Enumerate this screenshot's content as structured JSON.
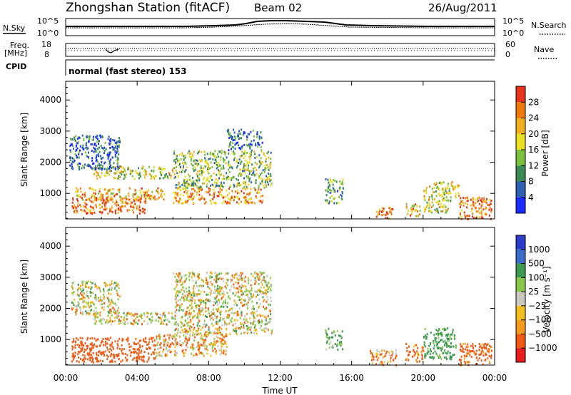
{
  "header": {
    "title": "Zhongshan Station (fitACF)",
    "beam": "Beam 02",
    "date": "26/Aug/2011"
  },
  "panels": {
    "noise": {
      "left_label": "N.Sky",
      "right_label": "N.Search",
      "left_top_tick": "10^5",
      "left_bottom_tick": "10^0",
      "right_top_tick": "10^5",
      "right_bottom_tick": "10^0"
    },
    "freq": {
      "left_label_top": "Freq.",
      "left_label_units": "[MHz]",
      "left_top_tick": "18",
      "left_bottom_tick": "8",
      "right_label": "Nave",
      "right_top_tick": "60",
      "right_bottom_tick": "0"
    },
    "cpid": {
      "label": "CPID",
      "text": "normal (fast stereo) 153"
    }
  },
  "colors": {
    "power_scale": [
      "#1a2bff",
      "#2f5fb0",
      "#3a8a55",
      "#7cc040",
      "#e8e020",
      "#f0b020",
      "#f07a10",
      "#e8341a"
    ],
    "velocity_scale": [
      "#e81c1c",
      "#f05a14",
      "#f59a1c",
      "#f2c020",
      "#c8c8c0",
      "#8ac848",
      "#3e9a50",
      "#3a6cc8",
      "#2a3cc8"
    ]
  },
  "chart_data": [
    {
      "type": "heatmap",
      "name": "power",
      "ylabel": "Slant Range [km]",
      "xlabel": "",
      "x_ticks": [
        "00:00",
        "04:00",
        "08:00",
        "12:00",
        "16:00",
        "20:00",
        "00:00"
      ],
      "y_ticks": [
        "1000",
        "2000",
        "3000",
        "4000"
      ],
      "xlim": [
        0,
        24
      ],
      "ylim": [
        180,
        4600
      ],
      "colorbar": {
        "label": "Power [dB]",
        "ticks": [
          "4",
          "8",
          "12",
          "16",
          "20",
          "24",
          "28"
        ],
        "range": [
          0,
          30
        ]
      },
      "regions": [
        {
          "x": [
            0.5,
            5.5
          ],
          "y": [
            800,
            1200
          ],
          "level": 0.7
        },
        {
          "x": [
            0.3,
            4.5
          ],
          "y": [
            380,
            900
          ],
          "level": 0.85
        },
        {
          "x": [
            1.5,
            6.0
          ],
          "y": [
            1500,
            1900
          ],
          "level": 0.55
        },
        {
          "x": [
            0.2,
            3.0
          ],
          "y": [
            1800,
            2900
          ],
          "level": 0.2
        },
        {
          "x": [
            6.0,
            11.0
          ],
          "y": [
            700,
            1200
          ],
          "level": 0.75
        },
        {
          "x": [
            6.0,
            11.5
          ],
          "y": [
            1200,
            2400
          ],
          "level": 0.45
        },
        {
          "x": [
            9.0,
            11.0
          ],
          "y": [
            2400,
            3100
          ],
          "level": 0.25
        },
        {
          "x": [
            14.5,
            15.5
          ],
          "y": [
            700,
            1500
          ],
          "level": 0.35
        },
        {
          "x": [
            17.3,
            18.3
          ],
          "y": [
            200,
            600
          ],
          "level": 0.75
        },
        {
          "x": [
            19.0,
            19.8
          ],
          "y": [
            300,
            700
          ],
          "level": 0.65
        },
        {
          "x": [
            20.0,
            21.5
          ],
          "y": [
            400,
            1400
          ],
          "level": 0.55
        },
        {
          "x": [
            21.5,
            22.0
          ],
          "y": [
            900,
            1400
          ],
          "level": 0.6
        },
        {
          "x": [
            22.0,
            23.8
          ],
          "y": [
            200,
            900
          ],
          "level": 0.85
        }
      ]
    },
    {
      "type": "heatmap",
      "name": "velocity",
      "ylabel": "Slant Range [km]",
      "xlabel": "Time UT",
      "x_ticks": [
        "00:00",
        "04:00",
        "08:00",
        "12:00",
        "16:00",
        "20:00",
        "00:00"
      ],
      "y_ticks": [
        "1000",
        "2000",
        "3000",
        "4000"
      ],
      "xlim": [
        0,
        24
      ],
      "ylim": [
        180,
        4600
      ],
      "colorbar": {
        "label": "Velocity [m s⁻¹]",
        "ticks": [
          "1000",
          "500",
          "100",
          "25",
          "−25",
          "−100",
          "−500",
          "−1000"
        ],
        "range": [
          -1000,
          1000
        ]
      },
      "regions": [
        {
          "x": [
            0.3,
            5.0
          ],
          "y": [
            300,
            1100
          ],
          "level": -300
        },
        {
          "x": [
            0.3,
            3.0
          ],
          "y": [
            1800,
            2900
          ],
          "level": 0
        },
        {
          "x": [
            1.5,
            6.0
          ],
          "y": [
            1500,
            1900
          ],
          "level": 0
        },
        {
          "x": [
            5.0,
            9.0
          ],
          "y": [
            500,
            1200
          ],
          "level": -60
        },
        {
          "x": [
            6.0,
            11.5
          ],
          "y": [
            1200,
            3200
          ],
          "level": 0
        },
        {
          "x": [
            14.5,
            15.5
          ],
          "y": [
            700,
            1400
          ],
          "level": 120
        },
        {
          "x": [
            17.0,
            18.5
          ],
          "y": [
            200,
            700
          ],
          "level": -100
        },
        {
          "x": [
            19.0,
            20.0
          ],
          "y": [
            300,
            900
          ],
          "level": -150
        },
        {
          "x": [
            20.0,
            21.8
          ],
          "y": [
            400,
            1400
          ],
          "level": 200
        },
        {
          "x": [
            22.0,
            23.8
          ],
          "y": [
            200,
            900
          ],
          "level": -200
        }
      ]
    }
  ]
}
